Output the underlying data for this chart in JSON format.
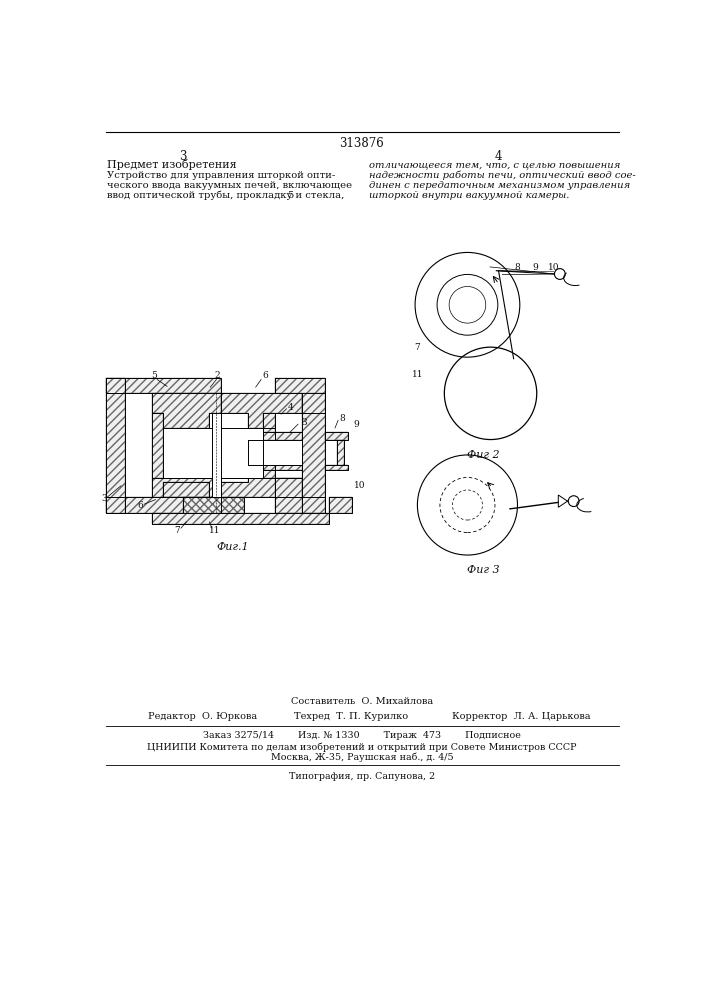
{
  "page_number": "313876",
  "col_left": "3",
  "col_right": "4",
  "section_title": "Предмет изобретения",
  "body_left_1": "Устройство для управления шторкой опти-",
  "body_left_2": "ческого ввода вакуумных печей, включающее",
  "body_left_3": "ввод оптической трубы, прокладку и стекла,",
  "body_left_num": "5",
  "body_right_1": "отличающееся тем, что, с целью повышения",
  "body_right_2": "надежности работы печи, оптический ввод сое-",
  "body_right_3": "динен с передаточным механизмом управления",
  "body_right_4": "шторкой внутри вакуумной камеры.",
  "fig1_label": "Фиг.1",
  "fig2_label": "Фиг 2",
  "fig3_label": "Фиг 3",
  "compiler_line": "Составитель  О. Михайлова",
  "editor_line": "Редактор  О. Юркова",
  "tekred_line": "Техред  Т. П. Курилко",
  "corrector_line": "Корректор  Л. А. Царькова",
  "order_line": "Заказ 3275/14        Изд. № 1330        Тираж  473        Подписное",
  "org_line": "ЦНИИПИ Комитета по делам изобретений и открытий при Совете Министров СССР",
  "address_line": "Москва, Ж-35, Раушская наб., д. 4/5",
  "print_line": "Типография, пр. Сапунова, 2",
  "bg_color": "#ffffff",
  "lc": "#000000",
  "tc": "#111111"
}
